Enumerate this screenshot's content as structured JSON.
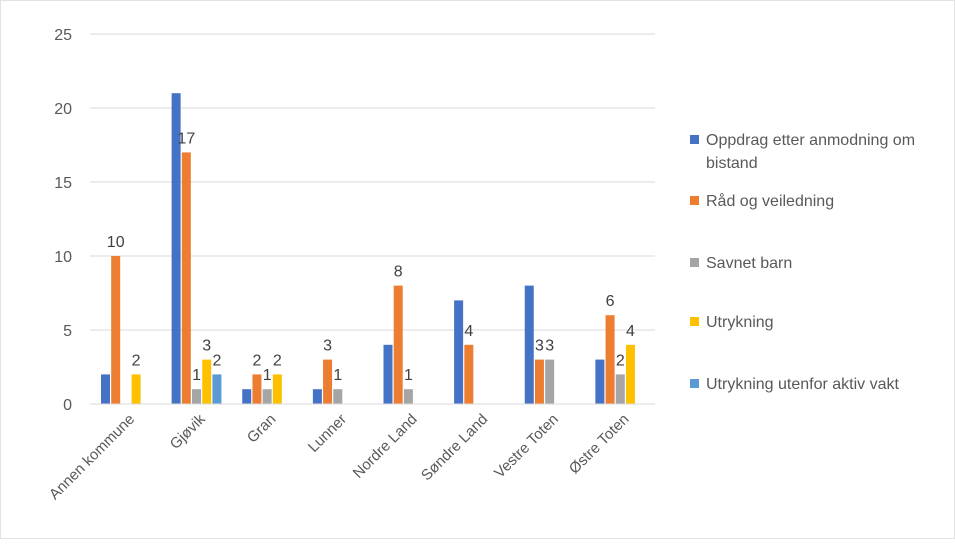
{
  "chart_data": {
    "type": "bar",
    "categories": [
      "Annen kommune",
      "Gjøvik",
      "Gran",
      "Lunner",
      "Nordre Land",
      "Søndre Land",
      "Vestre Toten",
      "Østre Toten"
    ],
    "series": [
      {
        "name": "Oppdrag etter anmodning om bistand",
        "color": "#4472C4",
        "values": [
          2,
          21,
          1,
          1,
          4,
          7,
          8,
          3
        ]
      },
      {
        "name": "Råd og veiledning",
        "color": "#ED7D31",
        "values": [
          10,
          17,
          2,
          3,
          8,
          4,
          3,
          6
        ]
      },
      {
        "name": "Savnet barn",
        "color": "#A5A5A5",
        "values": [
          0,
          1,
          1,
          1,
          1,
          0,
          3,
          2
        ]
      },
      {
        "name": "Utrykning",
        "color": "#FFC000",
        "values": [
          2,
          3,
          2,
          0,
          0,
          0,
          0,
          4
        ]
      },
      {
        "name": "Utrykning utenfor aktiv vakt",
        "color": "#5B9BD5",
        "values": [
          0,
          2,
          0,
          0,
          0,
          0,
          0,
          0
        ]
      }
    ],
    "data_labels": [
      {
        "category": 0,
        "series": 1,
        "text": "10"
      },
      {
        "category": 0,
        "series": 3,
        "text": "2"
      },
      {
        "category": 1,
        "series": 1,
        "text": "17"
      },
      {
        "category": 1,
        "series": 2,
        "text": "1"
      },
      {
        "category": 1,
        "series": 3,
        "text": "3"
      },
      {
        "category": 1,
        "series": 4,
        "text": "2"
      },
      {
        "category": 2,
        "series": 1,
        "text": "2"
      },
      {
        "category": 2,
        "series": 2,
        "text": "1"
      },
      {
        "category": 2,
        "series": 3,
        "text": "2"
      },
      {
        "category": 3,
        "series": 1,
        "text": "3"
      },
      {
        "category": 3,
        "series": 2,
        "text": "1"
      },
      {
        "category": 4,
        "series": 1,
        "text": "8"
      },
      {
        "category": 4,
        "series": 2,
        "text": "1"
      },
      {
        "category": 5,
        "series": 1,
        "text": "4"
      },
      {
        "category": 6,
        "series": 1,
        "text": "3"
      },
      {
        "category": 6,
        "series": 2,
        "text": "3"
      },
      {
        "category": 7,
        "series": 1,
        "text": "6"
      },
      {
        "category": 7,
        "series": 2,
        "text": "2"
      },
      {
        "category": 7,
        "series": 3,
        "text": "4"
      }
    ],
    "yticks": [
      "0",
      "5",
      "10",
      "15",
      "20",
      "25"
    ],
    "ylim": [
      0,
      25
    ],
    "title": "",
    "xlabel": "",
    "ylabel": "",
    "grid": true,
    "legend_position": "right"
  }
}
